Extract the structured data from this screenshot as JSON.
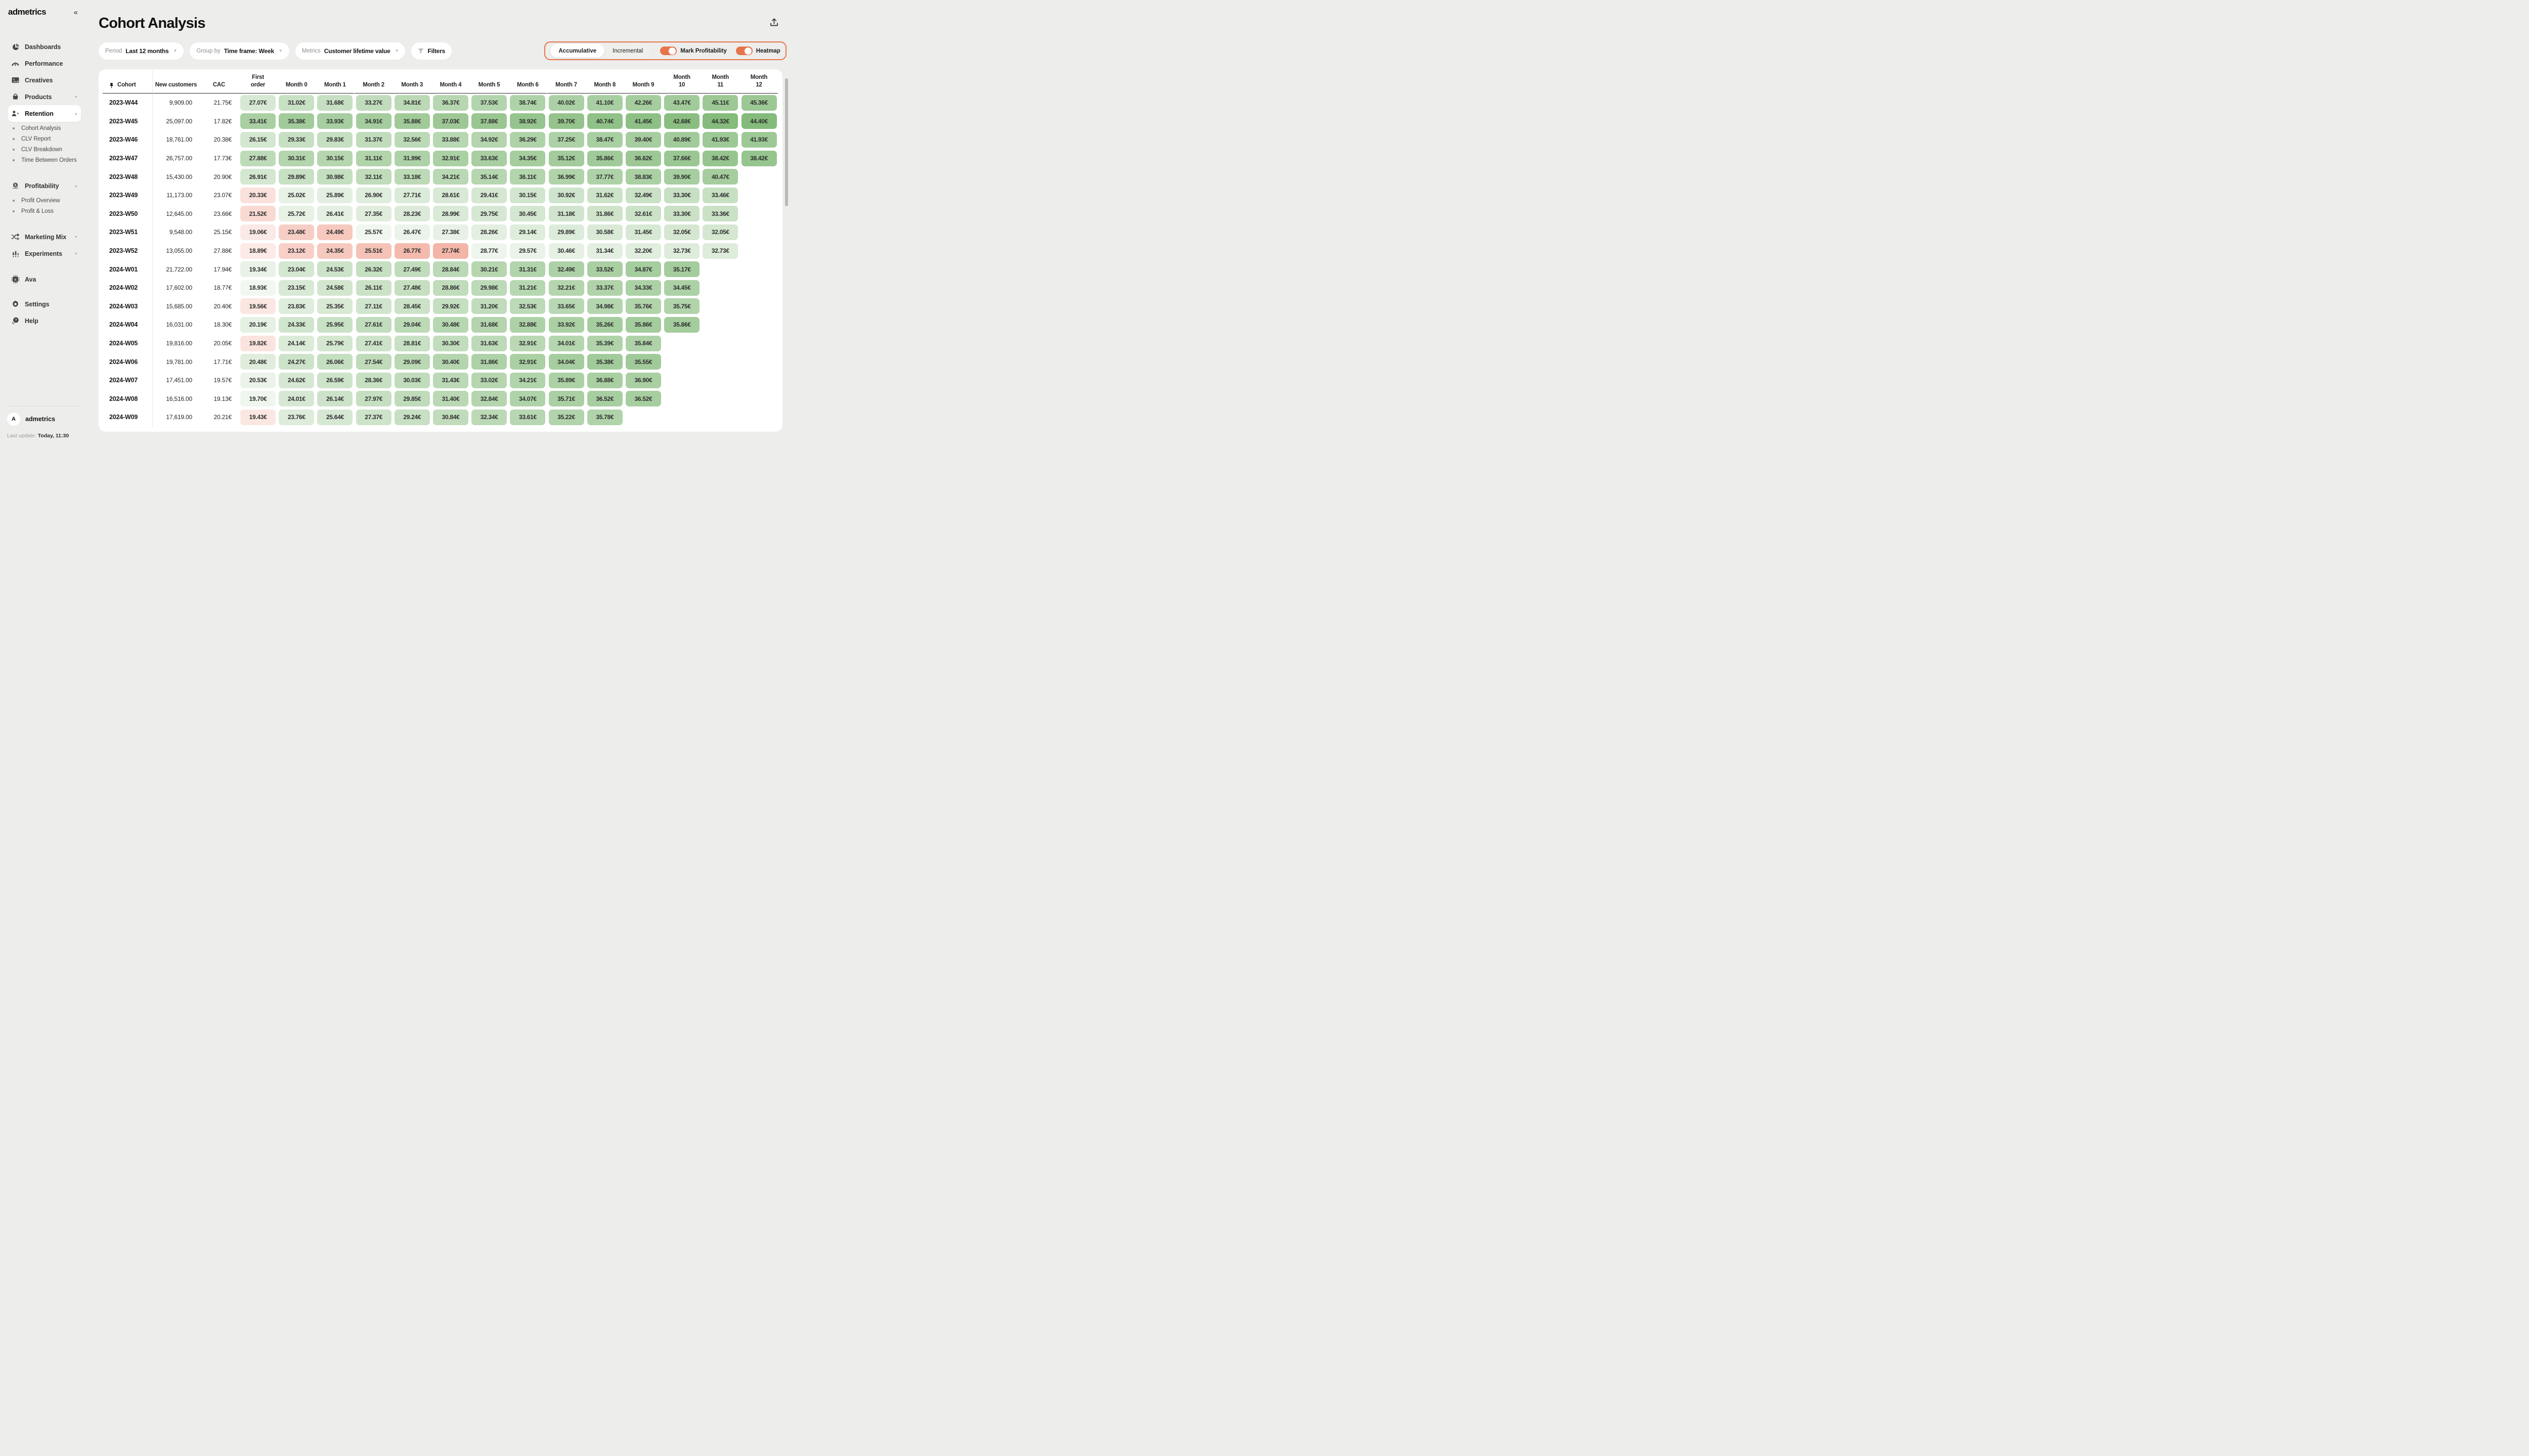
{
  "sidebar": {
    "logo": "admetrics",
    "collapse_glyph": "«",
    "items": [
      {
        "label": "Dashboards",
        "icon": "pie-chart-icon"
      },
      {
        "label": "Performance",
        "icon": "gauge-icon"
      },
      {
        "label": "Creatives",
        "icon": "image-icon"
      },
      {
        "label": "Products",
        "icon": "basket-icon",
        "chevron": "down"
      },
      {
        "label": "Retention",
        "icon": "people-icon",
        "chevron": "up",
        "active": true,
        "children": [
          "Cohort Analysis",
          "CLV Report",
          "CLV Breakdown",
          "Time Between Orders"
        ]
      },
      {
        "label": "Profitability",
        "icon": "coin-icon",
        "chevron": "up",
        "gap_before": true,
        "children": [
          "Profit Overview",
          "Profit & Loss"
        ]
      },
      {
        "label": "Marketing Mix",
        "icon": "shuffle-icon",
        "chevron": "down",
        "gap_before": true
      },
      {
        "label": "Experiments",
        "icon": "experiment-bars-icon",
        "chevron": "down"
      },
      {
        "label": "Ava",
        "icon": "chip-icon",
        "gap_before": true
      }
    ],
    "secondary": [
      {
        "label": "Settings",
        "icon": "gear-icon"
      },
      {
        "label": "Help",
        "icon": "help-chat-icon"
      }
    ],
    "footer": {
      "avatar_letter": "A",
      "account_name": "admetrics",
      "last_update_label": "Last update:",
      "last_update_value": "Today, 11:30"
    }
  },
  "header": {
    "title": "Cohort Analysis"
  },
  "filters": {
    "period": {
      "label": "Period",
      "value": "Last 12 months"
    },
    "group_by": {
      "label": "Group by",
      "value": "Time frame: Week"
    },
    "metrics": {
      "label": "Metrics",
      "value": "Customer lifetime value"
    },
    "filters_button": {
      "label": "Filters"
    }
  },
  "view_controls": {
    "accent_color": "#E8744B",
    "segments": [
      {
        "label": "Accumulative",
        "active": true
      },
      {
        "label": "Incremental",
        "active": false
      }
    ],
    "toggles": [
      {
        "label": "Mark Profitability",
        "on": true
      },
      {
        "label": "Heatmap",
        "on": true
      }
    ]
  },
  "table": {
    "pinned_column": "Cohort",
    "static_columns": [
      "New customers",
      "CAC"
    ],
    "value_columns": [
      "First order",
      "Month 0",
      "Month 1",
      "Month 2",
      "Month 3",
      "Month 4",
      "Month 5",
      "Month 6",
      "Month 7",
      "Month 8",
      "Month 9",
      "Month 10",
      "Month 11",
      "Month 12"
    ],
    "currency_suffix": "€",
    "heatmap": {
      "profit_color": "#4A9A3C",
      "loss_color": "#E55B3D",
      "text_color": "#2e2e2e"
    },
    "rows": [
      {
        "cohort": "2023-W44",
        "new_customers": "9,909.00",
        "cac": 21.75,
        "values": [
          27.07,
          31.02,
          31.68,
          33.27,
          34.81,
          36.37,
          37.53,
          38.74,
          40.02,
          41.1,
          42.26,
          43.47,
          45.11,
          45.36
        ]
      },
      {
        "cohort": "2023-W45",
        "new_customers": "25,097.00",
        "cac": 17.82,
        "values": [
          33.41,
          35.38,
          33.93,
          34.91,
          35.88,
          37.03,
          37.88,
          38.92,
          39.7,
          40.74,
          41.45,
          42.68,
          44.32,
          44.4
        ]
      },
      {
        "cohort": "2023-W46",
        "new_customers": "18,761.00",
        "cac": 20.38,
        "values": [
          26.15,
          29.33,
          29.83,
          31.37,
          32.56,
          33.88,
          34.92,
          36.29,
          37.25,
          38.47,
          39.4,
          40.89,
          41.93,
          41.93
        ]
      },
      {
        "cohort": "2023-W47",
        "new_customers": "26,757.00",
        "cac": 17.73,
        "values": [
          27.88,
          30.31,
          30.15,
          31.11,
          31.99,
          32.91,
          33.63,
          34.35,
          35.12,
          35.86,
          36.62,
          37.66,
          38.42,
          38.42
        ]
      },
      {
        "cohort": "2023-W48",
        "new_customers": "15,430.00",
        "cac": 20.9,
        "values": [
          26.91,
          29.89,
          30.98,
          32.11,
          33.18,
          34.21,
          35.14,
          36.11,
          36.99,
          37.77,
          38.83,
          39.9,
          40.47
        ]
      },
      {
        "cohort": "2023-W49",
        "new_customers": "11,173.00",
        "cac": 23.07,
        "values": [
          20.33,
          25.02,
          25.89,
          26.9,
          27.71,
          28.61,
          29.41,
          30.15,
          30.92,
          31.62,
          32.49,
          33.3,
          33.46
        ]
      },
      {
        "cohort": "2023-W50",
        "new_customers": "12,645.00",
        "cac": 23.66,
        "values": [
          21.52,
          25.72,
          26.41,
          27.35,
          28.23,
          28.99,
          29.75,
          30.45,
          31.18,
          31.86,
          32.61,
          33.3,
          33.36
        ]
      },
      {
        "cohort": "2023-W51",
        "new_customers": "9,548.00",
        "cac": 25.15,
        "values": [
          19.06,
          23.48,
          24.49,
          25.57,
          26.47,
          27.38,
          28.26,
          29.14,
          29.89,
          30.58,
          31.45,
          32.05,
          32.05
        ]
      },
      {
        "cohort": "2023-W52",
        "new_customers": "13,055.00",
        "cac": 27.88,
        "values": [
          18.89,
          23.12,
          24.35,
          25.51,
          26.77,
          27.74,
          28.77,
          29.57,
          30.46,
          31.34,
          32.2,
          32.73,
          32.73
        ]
      },
      {
        "cohort": "2024-W01",
        "new_customers": "21,722.00",
        "cac": 17.94,
        "values": [
          19.34,
          23.04,
          24.53,
          26.32,
          27.49,
          28.84,
          30.21,
          31.31,
          32.49,
          33.52,
          34.87,
          35.17
        ]
      },
      {
        "cohort": "2024-W02",
        "new_customers": "17,602.00",
        "cac": 18.77,
        "values": [
          18.93,
          23.15,
          24.58,
          26.11,
          27.48,
          28.86,
          29.98,
          31.21,
          32.21,
          33.37,
          34.33,
          34.45
        ]
      },
      {
        "cohort": "2024-W03",
        "new_customers": "15,685.00",
        "cac": 20.4,
        "values": [
          19.56,
          23.83,
          25.35,
          27.11,
          28.45,
          29.92,
          31.2,
          32.53,
          33.65,
          34.98,
          35.76,
          35.75
        ]
      },
      {
        "cohort": "2024-W04",
        "new_customers": "16,031.00",
        "cac": 18.3,
        "values": [
          20.19,
          24.33,
          25.95,
          27.61,
          29.04,
          30.48,
          31.68,
          32.88,
          33.92,
          35.26,
          35.86,
          35.86
        ]
      },
      {
        "cohort": "2024-W05",
        "new_customers": "19,816.00",
        "cac": 20.05,
        "values": [
          19.82,
          24.14,
          25.79,
          27.41,
          28.81,
          30.3,
          31.63,
          32.91,
          34.01,
          35.39,
          35.84
        ]
      },
      {
        "cohort": "2024-W06",
        "new_customers": "19,781.00",
        "cac": 17.71,
        "values": [
          20.48,
          24.27,
          26.06,
          27.54,
          29.09,
          30.4,
          31.86,
          32.91,
          34.04,
          35.38,
          35.55
        ]
      },
      {
        "cohort": "2024-W07",
        "new_customers": "17,451.00",
        "cac": 19.57,
        "values": [
          20.53,
          24.62,
          26.59,
          28.36,
          30.03,
          31.43,
          33.02,
          34.21,
          35.89,
          36.88,
          36.9
        ]
      },
      {
        "cohort": "2024-W08",
        "new_customers": "16,516.00",
        "cac": 19.13,
        "values": [
          19.7,
          24.01,
          26.14,
          27.97,
          29.85,
          31.4,
          32.84,
          34.07,
          35.71,
          36.52,
          36.52
        ]
      },
      {
        "cohort": "2024-W09",
        "new_customers": "17,619.00",
        "cac": 20.21,
        "values": [
          19.43,
          23.76,
          25.64,
          27.37,
          29.24,
          30.84,
          32.34,
          33.61,
          35.22,
          35.78
        ]
      }
    ]
  }
}
